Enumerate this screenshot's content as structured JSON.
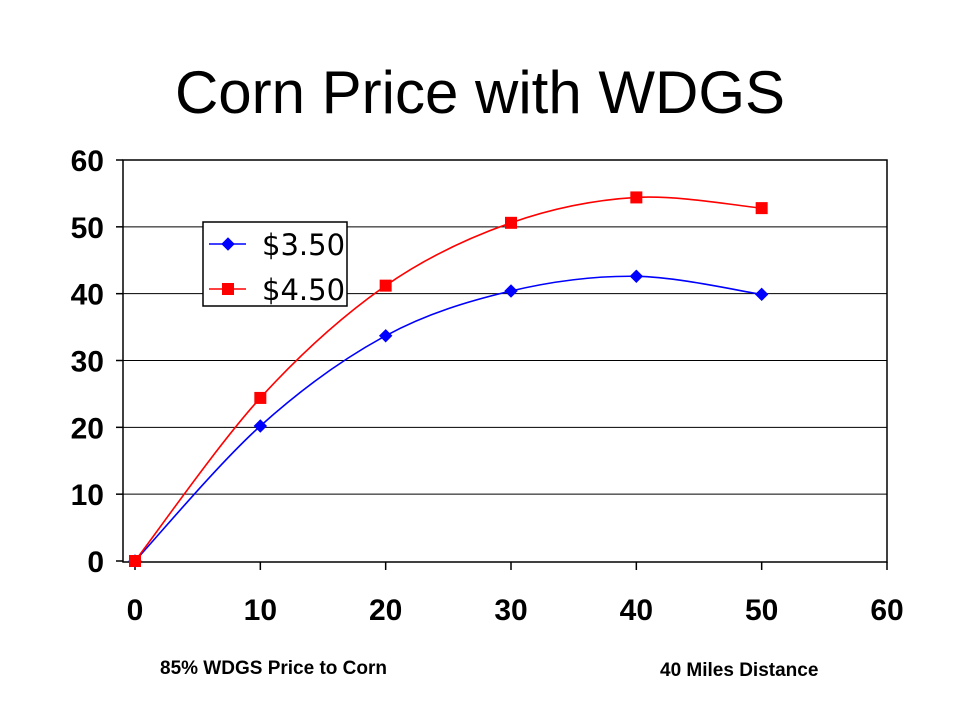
{
  "title": "Corn Price with WDGS",
  "notes": {
    "left": "85% WDGS Price to Corn",
    "right": "40 Miles Distance"
  },
  "chart_data": {
    "type": "line",
    "title": "Corn Price with WDGS",
    "xlabel": "",
    "ylabel": "",
    "xlim": [
      0,
      60
    ],
    "ylim": [
      0,
      60
    ],
    "x_ticks": [
      0,
      10,
      20,
      30,
      40,
      50,
      60
    ],
    "y_ticks": [
      0,
      10,
      20,
      30,
      40,
      50,
      60
    ],
    "grid": "horizontal",
    "legend_position": "top-left",
    "series": [
      {
        "name": "$3.50",
        "color": "#0000ff",
        "marker": "diamond",
        "x": [
          0,
          10,
          20,
          30,
          40,
          50
        ],
        "y": [
          0,
          20.2,
          33.7,
          40.4,
          42.6,
          39.9
        ]
      },
      {
        "name": "$4.50",
        "color": "#ff0000",
        "marker": "square",
        "x": [
          0,
          10,
          20,
          30,
          40,
          50
        ],
        "y": [
          0,
          24.4,
          41.2,
          50.6,
          54.4,
          52.8
        ]
      }
    ]
  }
}
